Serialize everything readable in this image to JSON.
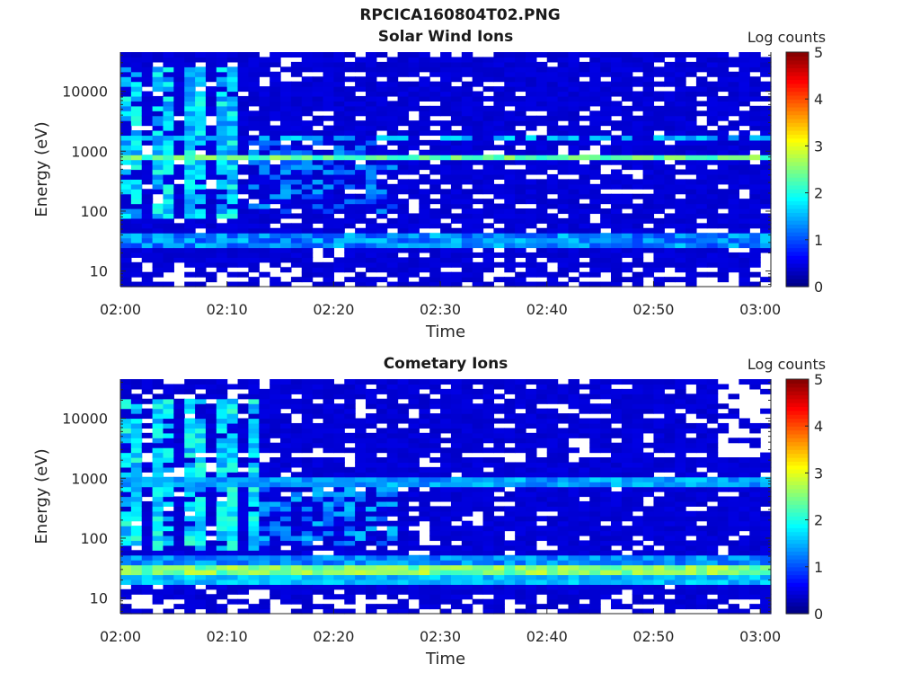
{
  "figure_title": "RPCICA160804T02.PNG",
  "colorbar": {
    "label": "Log counts",
    "ticks": [
      "0",
      "1",
      "2",
      "3",
      "4",
      "5"
    ],
    "range": [
      0,
      5
    ],
    "colormap": "jet"
  },
  "chart_data": [
    {
      "type": "heatmap",
      "title": "Solar Wind Ions",
      "xlabel": "Time",
      "ylabel": "Energy (eV)",
      "x_ticks": [
        "02:00",
        "02:10",
        "02:20",
        "02:30",
        "02:40",
        "02:50",
        "03:00"
      ],
      "xlim": [
        "02:00",
        "03:01"
      ],
      "y_ticks": [
        "10",
        "100",
        "1000",
        "10000"
      ],
      "yscale": "log",
      "ylim": [
        5.5,
        45000
      ],
      "bands": [
        {
          "energy": [
            700,
            920
          ],
          "log_counts": 2.3,
          "note": "solar wind peak"
        },
        {
          "energy": [
            1550,
            1900
          ],
          "log_counts": 1.6
        },
        {
          "energy": [
            26,
            42
          ],
          "log_counts": 1.4
        },
        {
          "energy": [
            2000,
            20000
          ],
          "time": [
            "02:00",
            "02:10"
          ],
          "log_counts": 1.9
        }
      ]
    },
    {
      "type": "heatmap",
      "title": "Cometary Ions",
      "xlabel": "Time",
      "ylabel": "Energy (eV)",
      "x_ticks": [
        "02:00",
        "02:10",
        "02:20",
        "02:30",
        "02:40",
        "02:50",
        "03:00"
      ],
      "xlim": [
        "02:00",
        "03:01"
      ],
      "y_ticks": [
        "10",
        "100",
        "1000",
        "10000"
      ],
      "yscale": "log",
      "ylim": [
        5.5,
        45000
      ],
      "bands": [
        {
          "energy": [
            24,
            36
          ],
          "log_counts": 2.4,
          "note": "cometary ion peak"
        },
        {
          "energy": [
            18,
            24
          ],
          "log_counts": 1.6
        },
        {
          "energy": [
            800,
            1000
          ],
          "log_counts": 1.4
        },
        {
          "energy": [
            100,
            10000
          ],
          "time": [
            "02:00",
            "02:12"
          ],
          "log_counts": 2.0
        }
      ]
    }
  ]
}
